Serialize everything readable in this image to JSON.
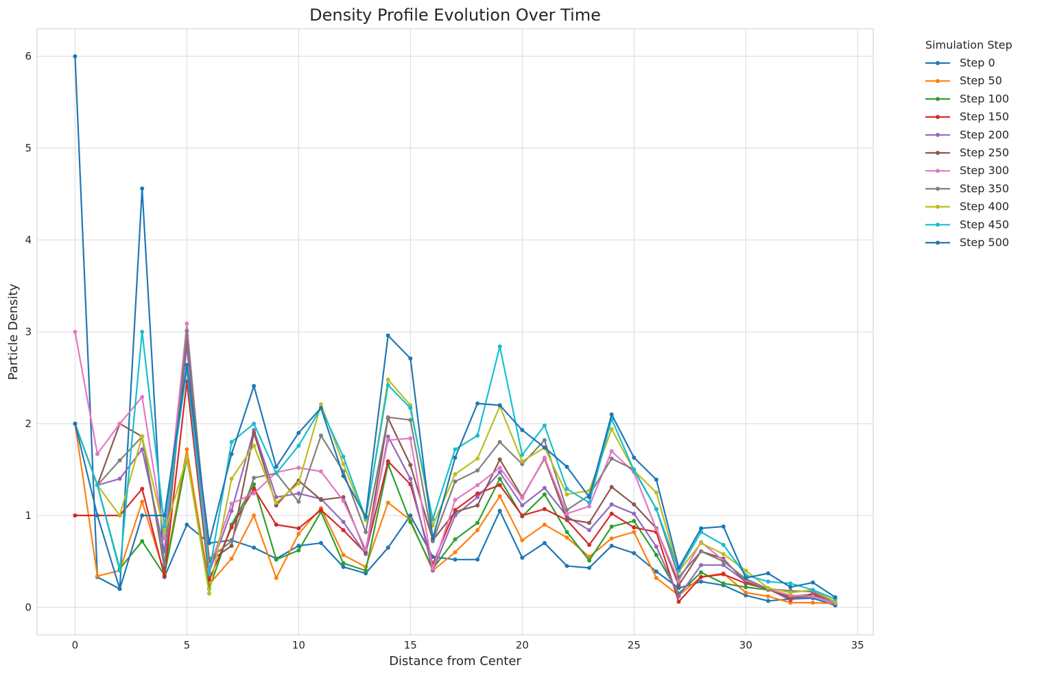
{
  "chart_data": {
    "type": "line",
    "title": "Density Profile Evolution Over Time",
    "xlabel": "Distance from Center",
    "ylabel": "Particle Density",
    "xlim": [
      -1.7,
      35.7
    ],
    "ylim": [
      -0.3,
      6.3
    ],
    "xticks": [
      0,
      5,
      10,
      15,
      20,
      25,
      30,
      35
    ],
    "yticks": [
      0,
      1,
      2,
      3,
      4,
      5,
      6
    ],
    "grid": true,
    "legend": {
      "title": "Simulation Step",
      "placement": "outside-right"
    },
    "x": [
      0,
      1,
      2,
      3,
      4,
      5,
      6,
      7,
      8,
      9,
      10,
      11,
      12,
      13,
      14,
      15,
      16,
      17,
      18,
      19,
      20,
      21,
      22,
      23,
      24,
      25,
      26,
      27,
      28,
      29,
      30,
      31,
      32,
      33,
      34
    ],
    "series": [
      {
        "name": "Step 0",
        "color": "#1f77b4",
        "values": [
          6.0,
          0.33,
          0.2,
          4.56,
          0.33,
          0.9,
          0.7,
          0.73,
          0.65,
          0.53,
          0.67,
          0.7,
          0.44,
          0.37,
          0.65,
          1.0,
          0.55,
          0.52,
          0.52,
          1.05,
          0.54,
          0.7,
          0.45,
          0.43,
          0.67,
          0.59,
          0.39,
          0.21,
          0.28,
          0.24,
          0.13,
          0.07,
          0.09,
          0.1,
          0.02
        ]
      },
      {
        "name": "Step 50",
        "color": "#ff7f0e",
        "values": [
          2.0,
          0.34,
          0.4,
          1.15,
          0.37,
          1.72,
          0.25,
          0.53,
          1.0,
          0.32,
          0.8,
          1.08,
          0.57,
          0.44,
          1.14,
          0.95,
          0.4,
          0.6,
          0.84,
          1.21,
          0.73,
          0.9,
          0.76,
          0.55,
          0.75,
          0.82,
          0.32,
          0.13,
          0.33,
          0.37,
          0.16,
          0.12,
          0.05,
          0.05,
          0.04
        ]
      },
      {
        "name": "Step 100",
        "color": "#2ca02c",
        "values": [
          2.0,
          1.33,
          0.42,
          0.72,
          0.35,
          1.63,
          0.2,
          0.9,
          1.34,
          0.52,
          0.62,
          1.04,
          0.48,
          0.4,
          1.56,
          0.93,
          0.42,
          0.74,
          0.92,
          1.4,
          0.99,
          1.23,
          0.82,
          0.51,
          0.88,
          0.94,
          0.57,
          0.15,
          0.38,
          0.26,
          0.22,
          0.19,
          0.12,
          0.14,
          0.05
        ]
      },
      {
        "name": "Step 150",
        "color": "#d62728",
        "values": [
          1.0,
          1.0,
          1.0,
          1.29,
          0.34,
          2.46,
          0.3,
          0.87,
          1.29,
          0.9,
          0.86,
          1.06,
          0.84,
          0.59,
          1.59,
          1.34,
          0.47,
          1.06,
          1.24,
          1.33,
          1.0,
          1.07,
          0.95,
          0.68,
          1.02,
          0.87,
          0.82,
          0.06,
          0.33,
          0.36,
          0.26,
          0.2,
          0.08,
          0.15,
          0.04
        ]
      },
      {
        "name": "Step 200",
        "color": "#9467bd",
        "values": [
          2.0,
          1.33,
          1.4,
          1.72,
          0.61,
          2.85,
          0.38,
          1.05,
          1.93,
          1.2,
          1.24,
          1.18,
          0.93,
          0.58,
          1.86,
          1.4,
          0.4,
          1.0,
          1.2,
          1.47,
          1.11,
          1.3,
          0.99,
          0.84,
          1.12,
          1.02,
          0.66,
          0.12,
          0.46,
          0.46,
          0.28,
          0.2,
          0.09,
          0.12,
          0.04
        ]
      },
      {
        "name": "Step 250",
        "color": "#8c564b",
        "values": [
          2.0,
          1.33,
          2.0,
          1.86,
          0.43,
          2.96,
          0.5,
          0.67,
          1.9,
          1.11,
          1.38,
          1.17,
          1.2,
          0.6,
          2.06,
          1.55,
          0.73,
          1.04,
          1.11,
          1.61,
          1.2,
          1.62,
          0.96,
          0.92,
          1.31,
          1.12,
          0.86,
          0.24,
          0.61,
          0.53,
          0.27,
          0.2,
          0.1,
          0.13,
          0.05
        ]
      },
      {
        "name": "Step 300",
        "color": "#e377c2",
        "values": [
          3.0,
          1.67,
          2.0,
          2.29,
          0.75,
          3.09,
          0.42,
          1.13,
          1.24,
          1.47,
          1.52,
          1.48,
          1.16,
          0.63,
          1.82,
          1.84,
          0.42,
          1.17,
          1.33,
          1.52,
          1.19,
          1.63,
          1.02,
          1.1,
          1.7,
          1.47,
          0.85,
          0.29,
          0.71,
          0.51,
          0.3,
          0.2,
          0.13,
          0.12,
          0.05
        ]
      },
      {
        "name": "Step 350",
        "color": "#7f7f7f",
        "values": [
          2.0,
          1.33,
          1.6,
          1.86,
          0.47,
          3.01,
          0.53,
          0.72,
          1.41,
          1.46,
          1.15,
          1.87,
          1.48,
          0.82,
          2.07,
          2.04,
          0.72,
          1.37,
          1.49,
          1.8,
          1.56,
          1.82,
          1.06,
          1.22,
          1.62,
          1.5,
          1.07,
          0.33,
          0.61,
          0.5,
          0.31,
          0.2,
          0.18,
          0.17,
          0.06
        ]
      },
      {
        "name": "Step 400",
        "color": "#bcbd22",
        "values": [
          2.0,
          1.33,
          1.0,
          1.86,
          0.81,
          1.63,
          0.15,
          1.4,
          1.76,
          1.14,
          1.35,
          2.21,
          1.56,
          0.95,
          2.48,
          2.2,
          0.89,
          1.45,
          1.62,
          2.19,
          1.59,
          1.74,
          1.23,
          1.27,
          1.94,
          1.49,
          1.25,
          0.39,
          0.7,
          0.58,
          0.4,
          0.21,
          0.16,
          0.19,
          0.06
        ]
      },
      {
        "name": "Step 450",
        "color": "#17becf",
        "values": [
          2.0,
          1.33,
          0.4,
          3.0,
          0.88,
          2.6,
          0.37,
          1.8,
          2.0,
          1.46,
          1.76,
          2.17,
          1.64,
          0.97,
          2.42,
          2.17,
          0.96,
          1.72,
          1.87,
          2.84,
          1.66,
          1.98,
          1.29,
          1.14,
          2.05,
          1.49,
          1.07,
          0.4,
          0.82,
          0.68,
          0.35,
          0.28,
          0.26,
          0.19,
          0.09
        ]
      },
      {
        "name": "Step 500",
        "color": "#1f77b4",
        "values": [
          2.0,
          1.0,
          0.2,
          1.0,
          1.0,
          2.64,
          0.7,
          1.67,
          2.41,
          1.53,
          1.9,
          2.17,
          1.43,
          0.99,
          2.96,
          2.71,
          0.75,
          1.63,
          2.22,
          2.2,
          1.93,
          1.74,
          1.53,
          1.2,
          2.1,
          1.63,
          1.39,
          0.43,
          0.86,
          0.88,
          0.32,
          0.37,
          0.22,
          0.27,
          0.11
        ]
      }
    ]
  }
}
